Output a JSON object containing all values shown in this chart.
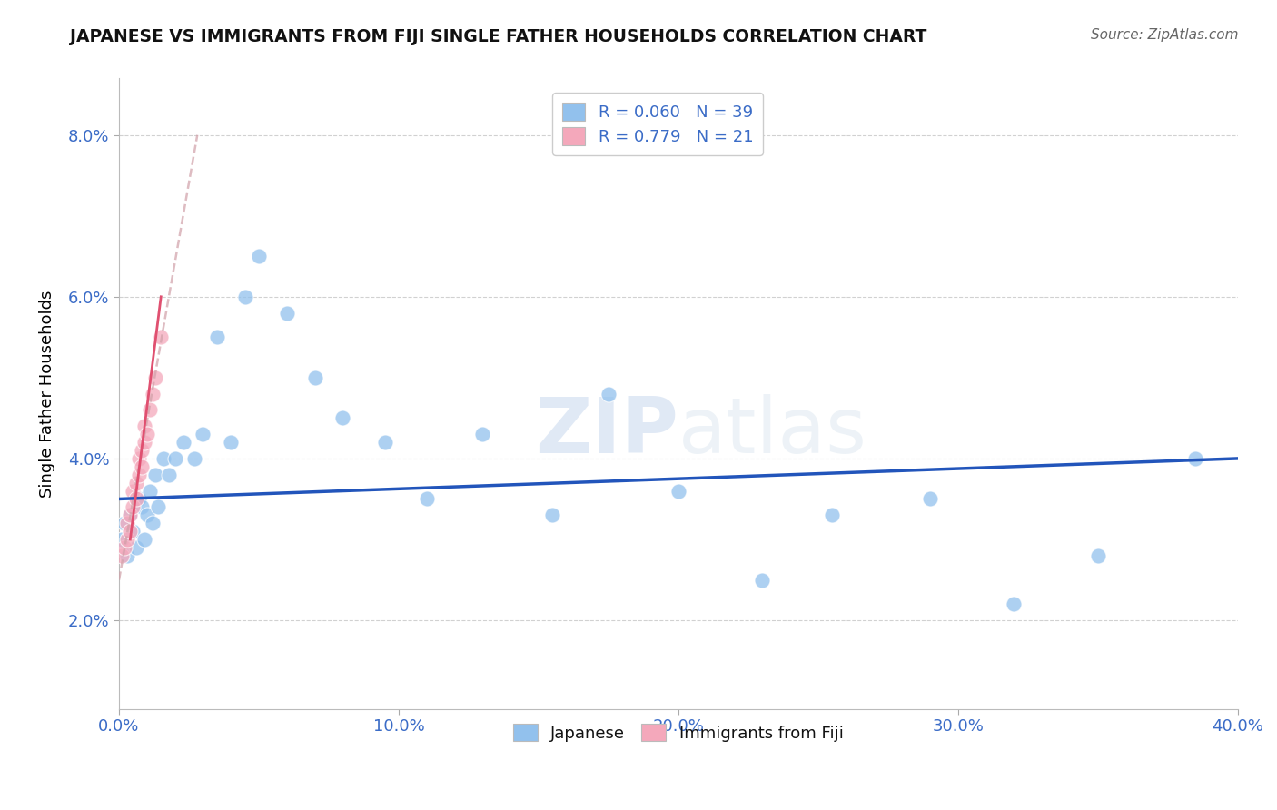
{
  "title": "JAPANESE VS IMMIGRANTS FROM FIJI SINGLE FATHER HOUSEHOLDS CORRELATION CHART",
  "source": "Source: ZipAtlas.com",
  "ylabel": "Single Father Households",
  "xlim": [
    0.0,
    0.4
  ],
  "ylim": [
    0.009,
    0.087
  ],
  "xticks": [
    0.0,
    0.1,
    0.2,
    0.3,
    0.4
  ],
  "xtick_labels": [
    "0.0%",
    "10.0%",
    "20.0%",
    "30.0%",
    "40.0%"
  ],
  "yticks": [
    0.02,
    0.04,
    0.06,
    0.08
  ],
  "ytick_labels": [
    "2.0%",
    "4.0%",
    "6.0%",
    "8.0%"
  ],
  "watermark_zip": "ZIP",
  "watermark_atlas": "atlas",
  "legend_r1": "R = 0.060",
  "legend_n1": "N = 39",
  "legend_r2": "R = 0.779",
  "legend_n2": "N = 21",
  "blue_color": "#92C1ED",
  "pink_color": "#F4A8BB",
  "line_blue": "#2255BB",
  "line_pink": "#E05070",
  "line_pink_dashed": "#D0A0A8",
  "japanese_x": [
    0.001,
    0.002,
    0.003,
    0.004,
    0.005,
    0.006,
    0.007,
    0.008,
    0.009,
    0.01,
    0.011,
    0.012,
    0.013,
    0.014,
    0.016,
    0.018,
    0.02,
    0.023,
    0.027,
    0.03,
    0.035,
    0.04,
    0.045,
    0.05,
    0.06,
    0.07,
    0.08,
    0.095,
    0.11,
    0.13,
    0.155,
    0.175,
    0.2,
    0.23,
    0.255,
    0.29,
    0.32,
    0.35,
    0.385
  ],
  "japanese_y": [
    0.03,
    0.032,
    0.028,
    0.033,
    0.031,
    0.029,
    0.035,
    0.034,
    0.03,
    0.033,
    0.036,
    0.032,
    0.038,
    0.034,
    0.04,
    0.038,
    0.04,
    0.042,
    0.04,
    0.043,
    0.055,
    0.042,
    0.06,
    0.065,
    0.058,
    0.05,
    0.045,
    0.042,
    0.035,
    0.043,
    0.033,
    0.048,
    0.036,
    0.025,
    0.033,
    0.035,
    0.022,
    0.028,
    0.04
  ],
  "fiji_x": [
    0.001,
    0.002,
    0.003,
    0.003,
    0.004,
    0.004,
    0.005,
    0.005,
    0.006,
    0.006,
    0.007,
    0.007,
    0.008,
    0.008,
    0.009,
    0.009,
    0.01,
    0.011,
    0.012,
    0.013,
    0.015
  ],
  "fiji_y": [
    0.028,
    0.029,
    0.03,
    0.032,
    0.031,
    0.033,
    0.034,
    0.036,
    0.035,
    0.037,
    0.038,
    0.04,
    0.039,
    0.041,
    0.042,
    0.044,
    0.043,
    0.046,
    0.048,
    0.05,
    0.055
  ]
}
